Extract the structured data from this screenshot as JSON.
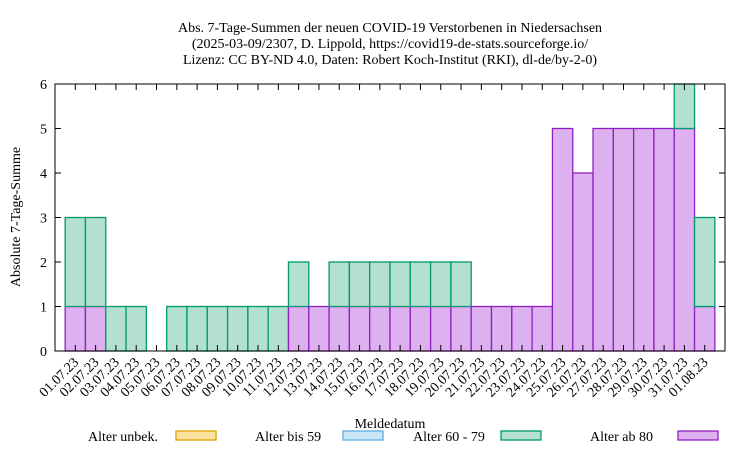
{
  "chart_data": {
    "type": "stacked_bar",
    "title": [
      "Abs. 7-Tage-Summen der neuen COVID-19 Verstorbenen in Niedersachsen",
      "(2025-03-09/2307, D. Lippold, https://covid19-de-stats.sourceforge.io/",
      "Lizenz: CC BY-ND 4.0, Daten: Robert Koch-Institut (RKI), dl-de/by-2-0)"
    ],
    "xlabel": "Meldedatum",
    "ylabel": "Absolute 7-Tage-Summe",
    "categories": [
      "01.07.23",
      "02.07.23",
      "03.07.23",
      "04.07.23",
      "05.07.23",
      "06.07.23",
      "07.07.23",
      "08.07.23",
      "09.07.23",
      "10.07.23",
      "11.07.23",
      "12.07.23",
      "13.07.23",
      "14.07.23",
      "15.07.23",
      "16.07.23",
      "17.07.23",
      "18.07.23",
      "19.07.23",
      "20.07.23",
      "21.07.23",
      "22.07.23",
      "23.07.23",
      "24.07.23",
      "25.07.23",
      "26.07.23",
      "27.07.23",
      "28.07.23",
      "29.07.23",
      "30.07.23",
      "31.07.23",
      "01.08.23"
    ],
    "series": [
      {
        "name": "Alter unbek.",
        "color": "#fde3a0",
        "edge": "#e0a000",
        "values": [
          0,
          0,
          0,
          0,
          0,
          0,
          0,
          0,
          0,
          0,
          0,
          0,
          0,
          0,
          0,
          0,
          0,
          0,
          0,
          0,
          0,
          0,
          0,
          0,
          0,
          0,
          0,
          0,
          0,
          0,
          0,
          0
        ]
      },
      {
        "name": "Alter bis 59",
        "color": "#c8e6f8",
        "edge": "#5aafe0",
        "values": [
          0,
          0,
          0,
          0,
          0,
          0,
          0,
          0,
          0,
          0,
          0,
          0,
          0,
          0,
          0,
          0,
          0,
          0,
          0,
          0,
          0,
          0,
          0,
          0,
          0,
          0,
          0,
          0,
          0,
          0,
          0,
          0
        ]
      },
      {
        "name": "Alter 60 - 79",
        "color": "#b3e0d0",
        "edge": "#009970",
        "values": [
          2,
          2,
          1,
          1,
          0,
          1,
          1,
          1,
          1,
          1,
          1,
          1,
          0,
          1,
          1,
          1,
          1,
          1,
          1,
          1,
          0,
          0,
          0,
          0,
          0,
          0,
          0,
          0,
          0,
          0,
          1,
          2
        ]
      },
      {
        "name": "Alter ab 80",
        "color": "#ddb0f0",
        "edge": "#9020c0",
        "values": [
          1,
          1,
          0,
          0,
          0,
          0,
          0,
          0,
          0,
          0,
          0,
          1,
          1,
          1,
          1,
          1,
          1,
          1,
          1,
          1,
          1,
          1,
          1,
          1,
          5,
          4,
          5,
          5,
          5,
          5,
          5,
          1
        ]
      }
    ],
    "ylim": [
      0,
      6
    ],
    "yticks": [
      0,
      1,
      2,
      3,
      4,
      5,
      6
    ]
  }
}
